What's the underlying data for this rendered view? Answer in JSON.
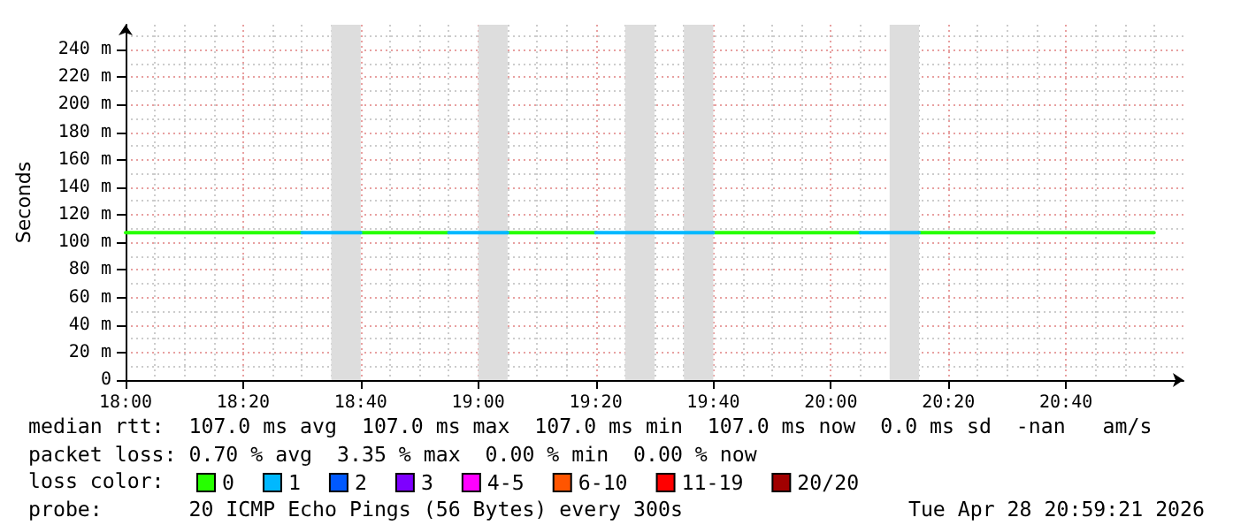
{
  "chart_data": {
    "type": "line",
    "ylabel": "Seconds",
    "legend_title": "loss color:",
    "xlim": [
      "2026-04-28T18:00",
      "2026-04-28T21:00"
    ],
    "xticks": [
      {
        "value": "2026-04-28T18:00",
        "label": "18:00"
      },
      {
        "value": "2026-04-28T18:20",
        "label": "18:20"
      },
      {
        "value": "2026-04-28T18:40",
        "label": "18:40"
      },
      {
        "value": "2026-04-28T19:00",
        "label": "19:00"
      },
      {
        "value": "2026-04-28T19:20",
        "label": "19:20"
      },
      {
        "value": "2026-04-28T19:40",
        "label": "19:40"
      },
      {
        "value": "2026-04-28T20:00",
        "label": "20:00"
      },
      {
        "value": "2026-04-28T20:20",
        "label": "20:20"
      },
      {
        "value": "2026-04-28T20:40",
        "label": "20:40"
      }
    ],
    "ylim": [
      0,
      258
    ],
    "yticks": [
      0,
      {
        "value": 20,
        "label": "20 m"
      },
      {
        "value": 40,
        "label": "40 m"
      },
      {
        "value": 60,
        "label": "60 m"
      },
      {
        "value": 80,
        "label": "80 m"
      },
      {
        "value": 100,
        "label": "100 m"
      },
      {
        "value": 120,
        "label": "120 m"
      },
      {
        "value": 140,
        "label": "140 m"
      },
      {
        "value": 160,
        "label": "160 m"
      },
      {
        "value": 180,
        "label": "180 m"
      },
      {
        "value": 200,
        "label": "200 m"
      },
      {
        "value": 220,
        "label": "220 m"
      },
      {
        "value": 240,
        "label": "240 m"
      }
    ],
    "x": [
      "2026-04-28T18:00",
      "2026-04-28T18:05",
      "2026-04-28T18:10",
      "2026-04-28T18:15",
      "2026-04-28T18:20",
      "2026-04-28T18:25",
      "2026-04-28T18:30",
      "2026-04-28T18:35",
      "2026-04-28T18:40",
      "2026-04-28T18:45",
      "2026-04-28T18:50",
      "2026-04-28T18:55",
      "2026-04-28T19:00",
      "2026-04-28T19:05",
      "2026-04-28T19:10",
      "2026-04-28T19:15",
      "2026-04-28T19:20",
      "2026-04-28T19:25",
      "2026-04-28T19:30",
      "2026-04-28T19:35",
      "2026-04-28T19:40",
      "2026-04-28T19:45",
      "2026-04-28T19:50",
      "2026-04-28T19:55",
      "2026-04-28T20:00",
      "2026-04-28T20:05",
      "2026-04-28T20:10",
      "2026-04-28T20:15",
      "2026-04-28T20:20",
      "2026-04-28T20:25",
      "2026-04-28T20:30",
      "2026-04-28T20:35",
      "2026-04-28T20:40",
      "2026-04-28T20:45",
      "2026-04-28T20:50",
      "2026-04-28T20:55"
    ],
    "grid": true,
    "legend": "bottom",
    "marker": "none",
    "line_style": "solid",
    "series": [
      {
        "name": "0",
        "color": "#26ff00",
        "values": [
          107,
          107,
          107,
          107,
          107,
          107,
          107,
          null,
          107,
          107,
          107,
          107,
          null,
          107,
          107,
          107,
          107,
          null,
          null,
          null,
          107,
          107,
          107,
          107,
          107,
          107,
          null,
          107,
          107,
          107,
          107,
          107,
          107,
          107,
          107,
          107
        ]
      },
      {
        "name": "1",
        "color": "#00b8ff",
        "values": [
          null,
          null,
          null,
          null,
          null,
          null,
          107,
          107,
          107,
          null,
          null,
          107,
          107,
          107,
          null,
          null,
          107,
          107,
          107,
          107,
          107,
          null,
          null,
          null,
          null,
          107,
          107,
          107,
          null,
          null,
          null,
          null,
          null,
          null,
          null,
          null
        ]
      },
      {
        "name": "2",
        "color": "#0059ff",
        "values": [
          null,
          null,
          null,
          null,
          null,
          null,
          null,
          null,
          null,
          null,
          null,
          null,
          null,
          null,
          null,
          null,
          null,
          null,
          null,
          null,
          null,
          null,
          null,
          null,
          null,
          null,
          null,
          null,
          null,
          null,
          null,
          null,
          null,
          null,
          null,
          null
        ]
      },
      {
        "name": "3",
        "color": "#7e00ff",
        "values": [
          null,
          null,
          null,
          null,
          null,
          null,
          null,
          null,
          null,
          null,
          null,
          null,
          null,
          null,
          null,
          null,
          null,
          null,
          null,
          null,
          null,
          null,
          null,
          null,
          null,
          null,
          null,
          null,
          null,
          null,
          null,
          null,
          null,
          null,
          null,
          null
        ]
      },
      {
        "name": "4-5",
        "color": "#ff00ff",
        "values": [
          null,
          null,
          null,
          null,
          null,
          null,
          null,
          null,
          null,
          null,
          null,
          null,
          null,
          null,
          null,
          null,
          null,
          null,
          null,
          null,
          null,
          null,
          null,
          null,
          null,
          null,
          null,
          null,
          null,
          null,
          null,
          null,
          null,
          null,
          null,
          null
        ]
      },
      {
        "name": "6-10",
        "color": "#ff5500",
        "values": [
          null,
          null,
          null,
          null,
          null,
          null,
          null,
          null,
          null,
          null,
          null,
          null,
          null,
          null,
          null,
          null,
          null,
          null,
          null,
          null,
          null,
          null,
          null,
          null,
          null,
          null,
          null,
          null,
          null,
          null,
          null,
          null,
          null,
          null,
          null,
          null
        ]
      },
      {
        "name": "11-19",
        "color": "#ff0000",
        "values": [
          null,
          null,
          null,
          null,
          null,
          null,
          null,
          null,
          null,
          null,
          null,
          null,
          null,
          null,
          null,
          null,
          null,
          null,
          null,
          null,
          null,
          null,
          null,
          null,
          null,
          null,
          null,
          null,
          null,
          null,
          null,
          null,
          null,
          null,
          null,
          null
        ]
      },
      {
        "name": "20/20",
        "color": "#a10000",
        "values": [
          null,
          null,
          null,
          null,
          null,
          null,
          null,
          null,
          null,
          null,
          null,
          null,
          null,
          null,
          null,
          null,
          null,
          null,
          null,
          null,
          null,
          null,
          null,
          null,
          null,
          null,
          null,
          null,
          null,
          null,
          null,
          null,
          null,
          null,
          null,
          null
        ]
      }
    ],
    "bands": [
      {
        "axis": "x",
        "from": "2026-04-28T18:35",
        "to": "2026-04-28T18:40",
        "color": "#dddddd"
      },
      {
        "axis": "x",
        "from": "2026-04-28T19:00",
        "to": "2026-04-28T19:05",
        "color": "#dddddd"
      },
      {
        "axis": "x",
        "from": "2026-04-28T19:25",
        "to": "2026-04-28T19:30",
        "color": "#dddddd"
      },
      {
        "axis": "x",
        "from": "2026-04-28T19:35",
        "to": "2026-04-28T19:40",
        "color": "#dddddd"
      },
      {
        "axis": "x",
        "from": "2026-04-28T20:10",
        "to": "2026-04-28T20:15",
        "color": "#dddddd"
      }
    ],
    "annotations": [
      "median rtt:  107.0 ms avg  107.0 ms max  107.0 ms min  107.0 ms now  0.0 ms sd  -nan   am/s",
      "packet loss: 0.70 % avg  3.35 % max  0.00 % min  0.00 % now",
      "probe:       20 ICMP Echo Pings (56 Bytes) every 300s",
      "Tue Apr 28 20:59:21 2026"
    ]
  }
}
